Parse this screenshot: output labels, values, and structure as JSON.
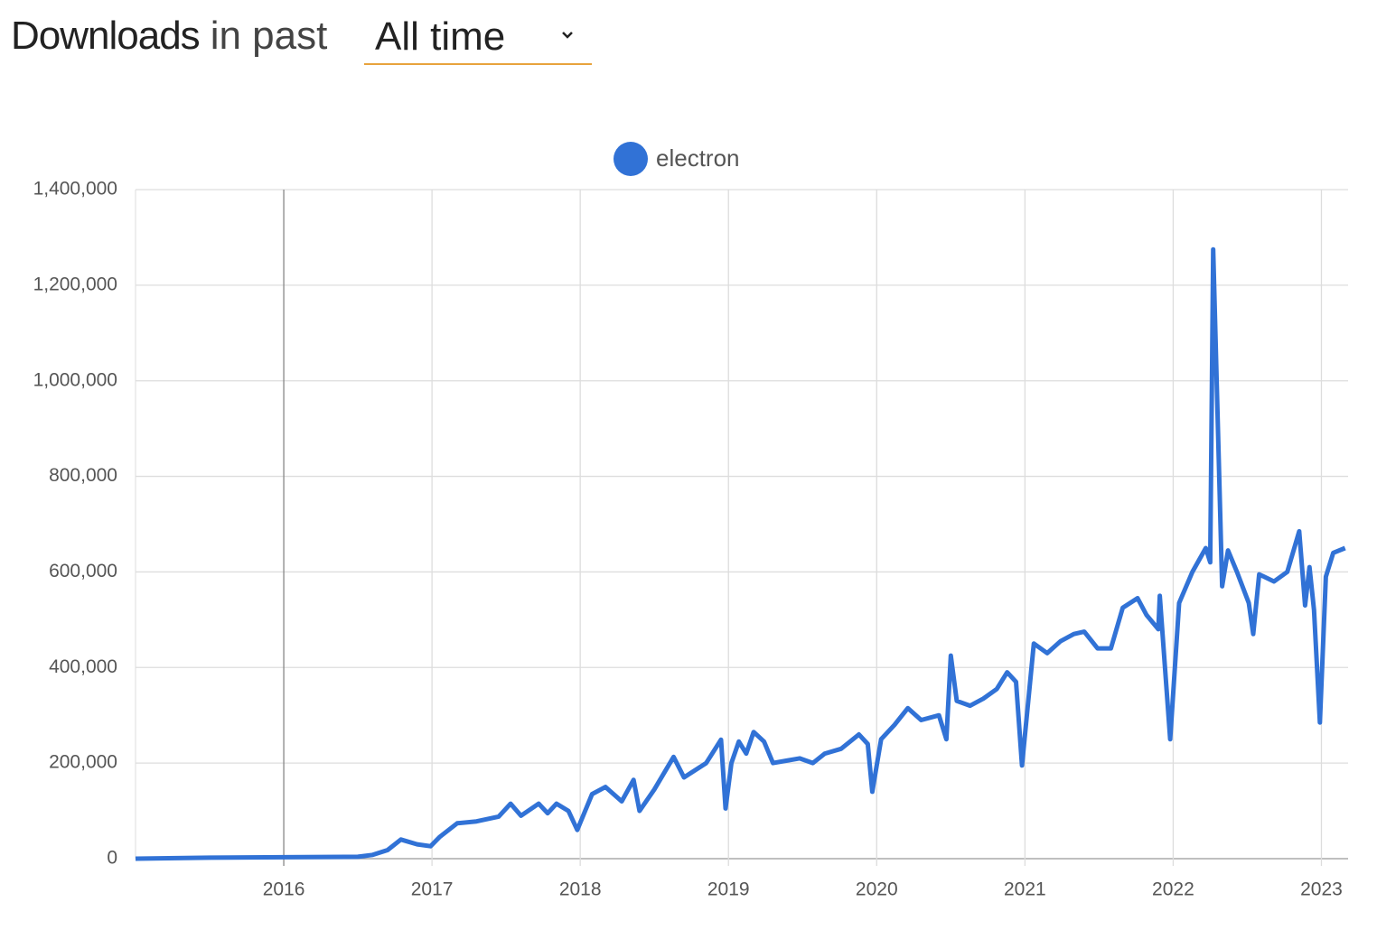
{
  "header": {
    "title": "Downloads",
    "subtitle": "in past",
    "period": "All time"
  },
  "chart_data": {
    "type": "line",
    "legend": "top",
    "grid": true,
    "xlim": [
      2015.0,
      2023.18
    ],
    "xticks": [
      2016,
      2017,
      2018,
      2019,
      2020,
      2021,
      2022,
      2023
    ],
    "ylim": [
      0,
      1400000
    ],
    "yticks": [
      0,
      {
        "value": 200000,
        "label": "200,000"
      },
      {
        "value": 400000,
        "label": "400,000"
      },
      {
        "value": 600000,
        "label": "600,000"
      },
      {
        "value": 800000,
        "label": "800,000"
      },
      {
        "value": 1000000,
        "label": "1,000,000"
      },
      {
        "value": 1200000,
        "label": "1,200,000"
      },
      {
        "value": 1400000,
        "label": "1,400,000"
      }
    ],
    "x": [
      2015.0,
      2015.5,
      2016.0,
      2016.5,
      2016.6,
      2016.7,
      2016.79,
      2016.9,
      2016.99,
      2017.05,
      2017.17,
      2017.3,
      2017.45,
      2017.53,
      2017.6,
      2017.72,
      2017.78,
      2017.84,
      2017.92,
      2017.98,
      2018.08,
      2018.17,
      2018.28,
      2018.36,
      2018.4,
      2018.5,
      2018.63,
      2018.7,
      2018.85,
      2018.95,
      2018.98,
      2019.02,
      2019.07,
      2019.12,
      2019.17,
      2019.24,
      2019.3,
      2019.39,
      2019.48,
      2019.57,
      2019.65,
      2019.76,
      2019.88,
      2019.94,
      2019.97,
      2020.03,
      2020.12,
      2020.21,
      2020.3,
      2020.42,
      2020.47,
      2020.5,
      2020.54,
      2020.63,
      2020.72,
      2020.81,
      2020.88,
      2020.94,
      2020.98,
      2021.06,
      2021.15,
      2021.24,
      2021.33,
      2021.4,
      2021.49,
      2021.58,
      2021.66,
      2021.76,
      2021.82,
      2021.9,
      2021.91,
      2021.98,
      2022.04,
      2022.13,
      2022.22,
      2022.25,
      2022.27,
      2022.33,
      2022.37,
      2022.43,
      2022.51,
      2022.54,
      2022.58,
      2022.68,
      2022.77,
      2022.85,
      2022.89,
      2022.92,
      2022.95,
      2022.99,
      2023.03,
      2023.08,
      2023.16
    ],
    "series": [
      {
        "name": "electron",
        "color": "#3172d6",
        "values": [
          0,
          2000,
          3000,
          4000,
          8000,
          18000,
          40000,
          30000,
          26000,
          45000,
          74000,
          78000,
          88000,
          115000,
          90000,
          115000,
          95000,
          115000,
          100000,
          60000,
          135000,
          150000,
          120000,
          165000,
          100000,
          145000,
          213000,
          170000,
          200000,
          249000,
          105000,
          200000,
          245000,
          220000,
          265000,
          245000,
          200000,
          205000,
          210000,
          200000,
          220000,
          230000,
          260000,
          240000,
          140000,
          250000,
          280000,
          315000,
          290000,
          300000,
          250000,
          425000,
          330000,
          320000,
          335000,
          355000,
          390000,
          370000,
          195000,
          450000,
          430000,
          455000,
          470000,
          475000,
          440000,
          440000,
          525000,
          545000,
          510000,
          480000,
          550000,
          250000,
          535000,
          600000,
          650000,
          620000,
          1275000,
          570000,
          645000,
          600000,
          535000,
          470000,
          595000,
          580000,
          600000,
          685000,
          530000,
          610000,
          520000,
          285000,
          590000,
          640000,
          650000
        ]
      }
    ]
  }
}
